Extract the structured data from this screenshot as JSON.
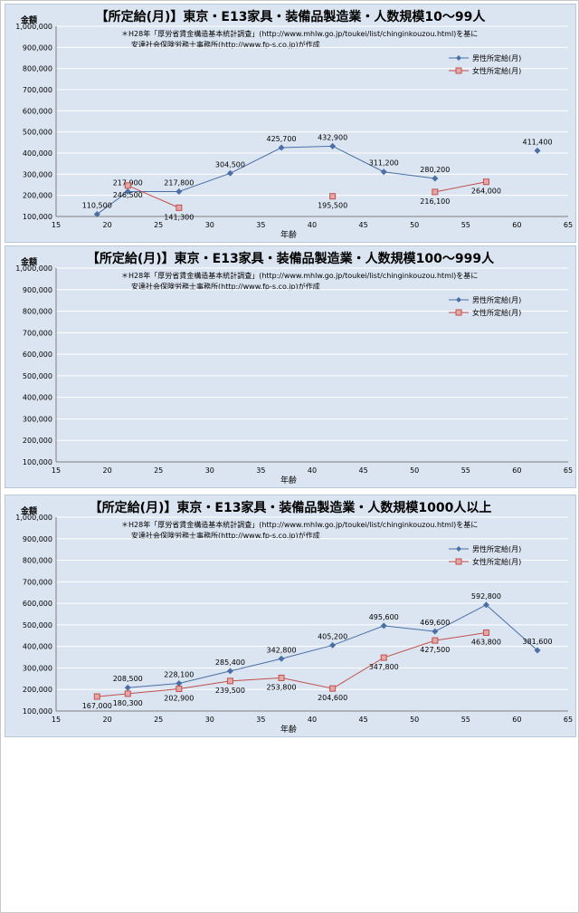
{
  "charts": [
    {
      "title": "【所定給(月)】東京・E13家具・装備品製造業・人数規模10～99人",
      "y_unit": "金額",
      "xlabel": "年齢",
      "note_line1": "＊H28年「厚労省賃金構造基本統計調査」(http://www.mhlw.go.jp/toukei/list/chinginkouzou.html)を基に",
      "note_line2": "安達社会保険労務士事務所(http://www.fp-s.co.jp)が作成",
      "legend": [
        "男性所定給(月)",
        "女性所定給(月)"
      ]
    },
    {
      "title": "【所定給(月)】東京・E13家具・装備品製造業・人数規模100～999人",
      "y_unit": "金額",
      "xlabel": "年齢",
      "note_line1": "＊H28年「厚労省賃金構造基本統計調査」(http://www.mhlw.go.jp/toukei/list/chinginkouzou.html)を基に",
      "note_line2": "安達社会保険労務士事務所(http://www.fp-s.co.jp)が作成",
      "legend": [
        "男性所定給(月)",
        "女性所定給(月)"
      ]
    },
    {
      "title": "【所定給(月)】東京・E13家具・装備品製造業・人数規模1000人以上",
      "y_unit": "金額",
      "xlabel": "年齢",
      "note_line1": "＊H28年「厚労省賃金構造基本統計調査」(http://www.mhlw.go.jp/toukei/list/chinginkouzou.html)を基に",
      "note_line2": "安達社会保険労務士事務所(http://www.fp-s.co.jp)が作成",
      "legend": [
        "男性所定給(月)",
        "女性所定給(月)"
      ]
    }
  ],
  "colors": {
    "male": "#4a6fa5",
    "female": "#c0504d",
    "female_fill": "#e6a8a6",
    "panel_bg": "#dbe5f1",
    "grid": "#ffffff"
  },
  "chart_data": [
    {
      "type": "line",
      "title": "【所定給(月)】東京・E13家具・装備品製造業・人数規模10～99人",
      "xlabel": "年齢",
      "ylabel": "金額",
      "xlim": [
        15,
        65
      ],
      "ylim": [
        100000,
        1000000
      ],
      "xticks": [
        "15",
        "20",
        "25",
        "30",
        "35",
        "40",
        "45",
        "50",
        "55",
        "60",
        "65"
      ],
      "yticks": [
        "100,000",
        "200,000",
        "300,000",
        "400,000",
        "500,000",
        "600,000",
        "700,000",
        "800,000",
        "900,000",
        "1,000,000"
      ],
      "legend_position": "top-right",
      "series": [
        {
          "name": "男性所定給(月)",
          "segments": [
            [
              [
                19,
                110500,
                "110,500"
              ],
              [
                22,
                217900,
                "217,900"
              ],
              [
                27,
                217800,
                "217,800"
              ],
              [
                32,
                304500,
                "304,500"
              ],
              [
                37,
                425700,
                "425,700"
              ],
              [
                42,
                432900,
                "432,900"
              ],
              [
                47,
                311200,
                "311,200"
              ],
              [
                52,
                280200,
                "280,200"
              ]
            ],
            [
              [
                62,
                411400,
                "411,400"
              ]
            ]
          ]
        },
        {
          "name": "女性所定給(月)",
          "segments": [
            [
              [
                22,
                246500,
                "246,500"
              ],
              [
                27,
                141300,
                "141,300"
              ]
            ],
            [
              [
                42,
                195500,
                "195,500"
              ]
            ],
            [
              [
                52,
                216100,
                "216,100"
              ],
              [
                57,
                264000,
                "264,000"
              ]
            ]
          ]
        }
      ]
    },
    {
      "type": "line",
      "title": "【所定給(月)】東京・E13家具・装備品製造業・人数規模100～999人",
      "xlabel": "年齢",
      "ylabel": "金額",
      "xlim": [
        15,
        65
      ],
      "ylim": [
        100000,
        1000000
      ],
      "xticks": [
        "15",
        "20",
        "25",
        "30",
        "35",
        "40",
        "45",
        "50",
        "55",
        "60",
        "65"
      ],
      "yticks": [
        "100,000",
        "200,000",
        "300,000",
        "400,000",
        "500,000",
        "600,000",
        "700,000",
        "800,000",
        "900,000",
        "1,000,000"
      ],
      "legend_position": "top-right",
      "series": [
        {
          "name": "男性所定給(月)",
          "segments": []
        },
        {
          "name": "女性所定給(月)",
          "segments": []
        }
      ]
    },
    {
      "type": "line",
      "title": "【所定給(月)】東京・E13家具・装備品製造業・人数規模1000人以上",
      "xlabel": "年齢",
      "ylabel": "金額",
      "xlim": [
        15,
        65
      ],
      "ylim": [
        100000,
        1000000
      ],
      "xticks": [
        "15",
        "20",
        "25",
        "30",
        "35",
        "40",
        "45",
        "50",
        "55",
        "60",
        "65"
      ],
      "yticks": [
        "100,000",
        "200,000",
        "300,000",
        "400,000",
        "500,000",
        "600,000",
        "700,000",
        "800,000",
        "900,000",
        "1,000,000"
      ],
      "legend_position": "top-right",
      "series": [
        {
          "name": "男性所定給(月)",
          "segments": [
            [
              [
                22,
                208500,
                "208,500"
              ],
              [
                27,
                228100,
                "228,100"
              ],
              [
                32,
                285400,
                "285,400"
              ],
              [
                37,
                342800,
                "342,800"
              ],
              [
                42,
                405200,
                "405,200"
              ],
              [
                47,
                495600,
                "495,600"
              ],
              [
                52,
                469600,
                "469,600"
              ],
              [
                57,
                592800,
                "592,800"
              ],
              [
                62,
                381600,
                "381,600"
              ]
            ]
          ]
        },
        {
          "name": "女性所定給(月)",
          "segments": [
            [
              [
                19,
                167000,
                "167,000"
              ],
              [
                22,
                180300,
                "180,300"
              ],
              [
                27,
                202900,
                "202,900"
              ],
              [
                32,
                239500,
                "239,500"
              ],
              [
                37,
                253800,
                "253,800"
              ],
              [
                42,
                204600,
                "204,600"
              ],
              [
                47,
                347800,
                "347,800"
              ],
              [
                52,
                427500,
                "427,500"
              ],
              [
                57,
                463800,
                "463,800"
              ]
            ]
          ]
        }
      ]
    }
  ]
}
